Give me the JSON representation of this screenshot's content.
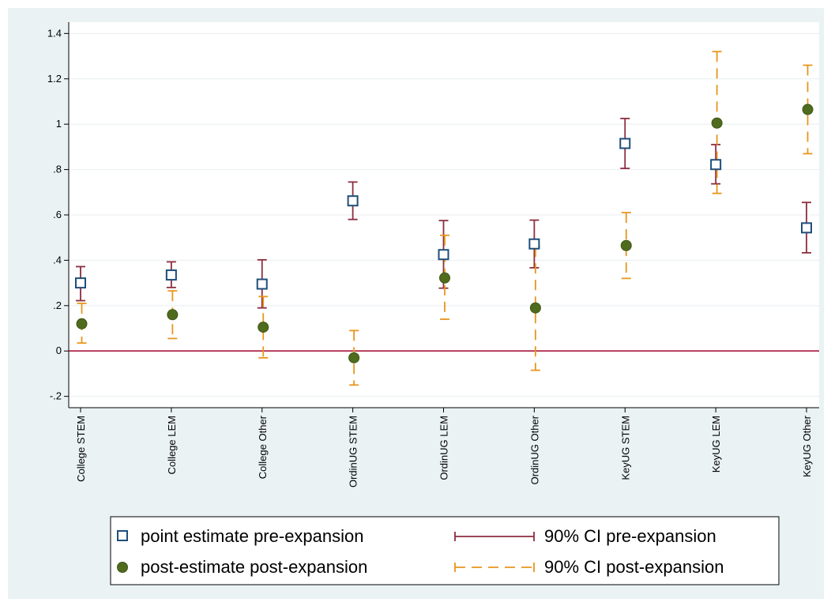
{
  "chart_data": {
    "type": "scatter",
    "title": "",
    "xlabel": "",
    "ylabel": "",
    "categories": [
      "College STEM",
      "College LEM",
      "College Other",
      "OrdinUG STEM",
      "OrdinUG LEM",
      "OrdinUG Other",
      "KeyUG STEM",
      "KeyUG LEM",
      "KeyUG Other"
    ],
    "ylim": [
      -0.25,
      1.45
    ],
    "yticks": [
      -0.2,
      0,
      0.2,
      0.4,
      0.6,
      0.8,
      1,
      1.2,
      1.4
    ],
    "ytick_labels": [
      "-.2",
      "0",
      ".2",
      ".4",
      ".6",
      ".8",
      "1",
      "1.2",
      "1.4"
    ],
    "reference_line": 0,
    "grid": true,
    "legend_position": "bottom",
    "series": [
      {
        "name": "point estimate pre-expansion",
        "marker": "hollow-square",
        "color": "#1f4e79",
        "values": [
          0.3,
          0.335,
          0.295,
          0.662,
          0.425,
          0.472,
          0.915,
          0.822,
          0.543
        ]
      },
      {
        "name": "post-estimate post-expansion",
        "marker": "filled-circle",
        "color": "#4f6b1e",
        "values": [
          0.12,
          0.16,
          0.105,
          -0.03,
          0.322,
          0.19,
          0.465,
          1.005,
          1.065
        ]
      },
      {
        "name": "90% CI pre-expansion",
        "type": "error-bar",
        "color": "#8b2e3f",
        "lower": [
          0.222,
          0.28,
          0.19,
          0.58,
          0.277,
          0.367,
          0.805,
          0.737,
          0.433
        ],
        "upper": [
          0.372,
          0.393,
          0.402,
          0.745,
          0.575,
          0.577,
          1.025,
          0.91,
          0.655
        ]
      },
      {
        "name": "90% CI post-expansion",
        "type": "error-bar-dashed",
        "color": "#e8961e",
        "lower": [
          0.035,
          0.055,
          -0.03,
          -0.15,
          0.14,
          -0.085,
          0.32,
          0.695,
          0.87
        ],
        "upper": [
          0.21,
          0.265,
          0.24,
          0.09,
          0.51,
          0.46,
          0.61,
          1.32,
          1.26
        ]
      }
    ],
    "colors": {
      "background": "#eaf2f3",
      "plot_area": "#ffffff",
      "gridline": "#e8eef0",
      "reference_line": "#a8163a"
    }
  }
}
